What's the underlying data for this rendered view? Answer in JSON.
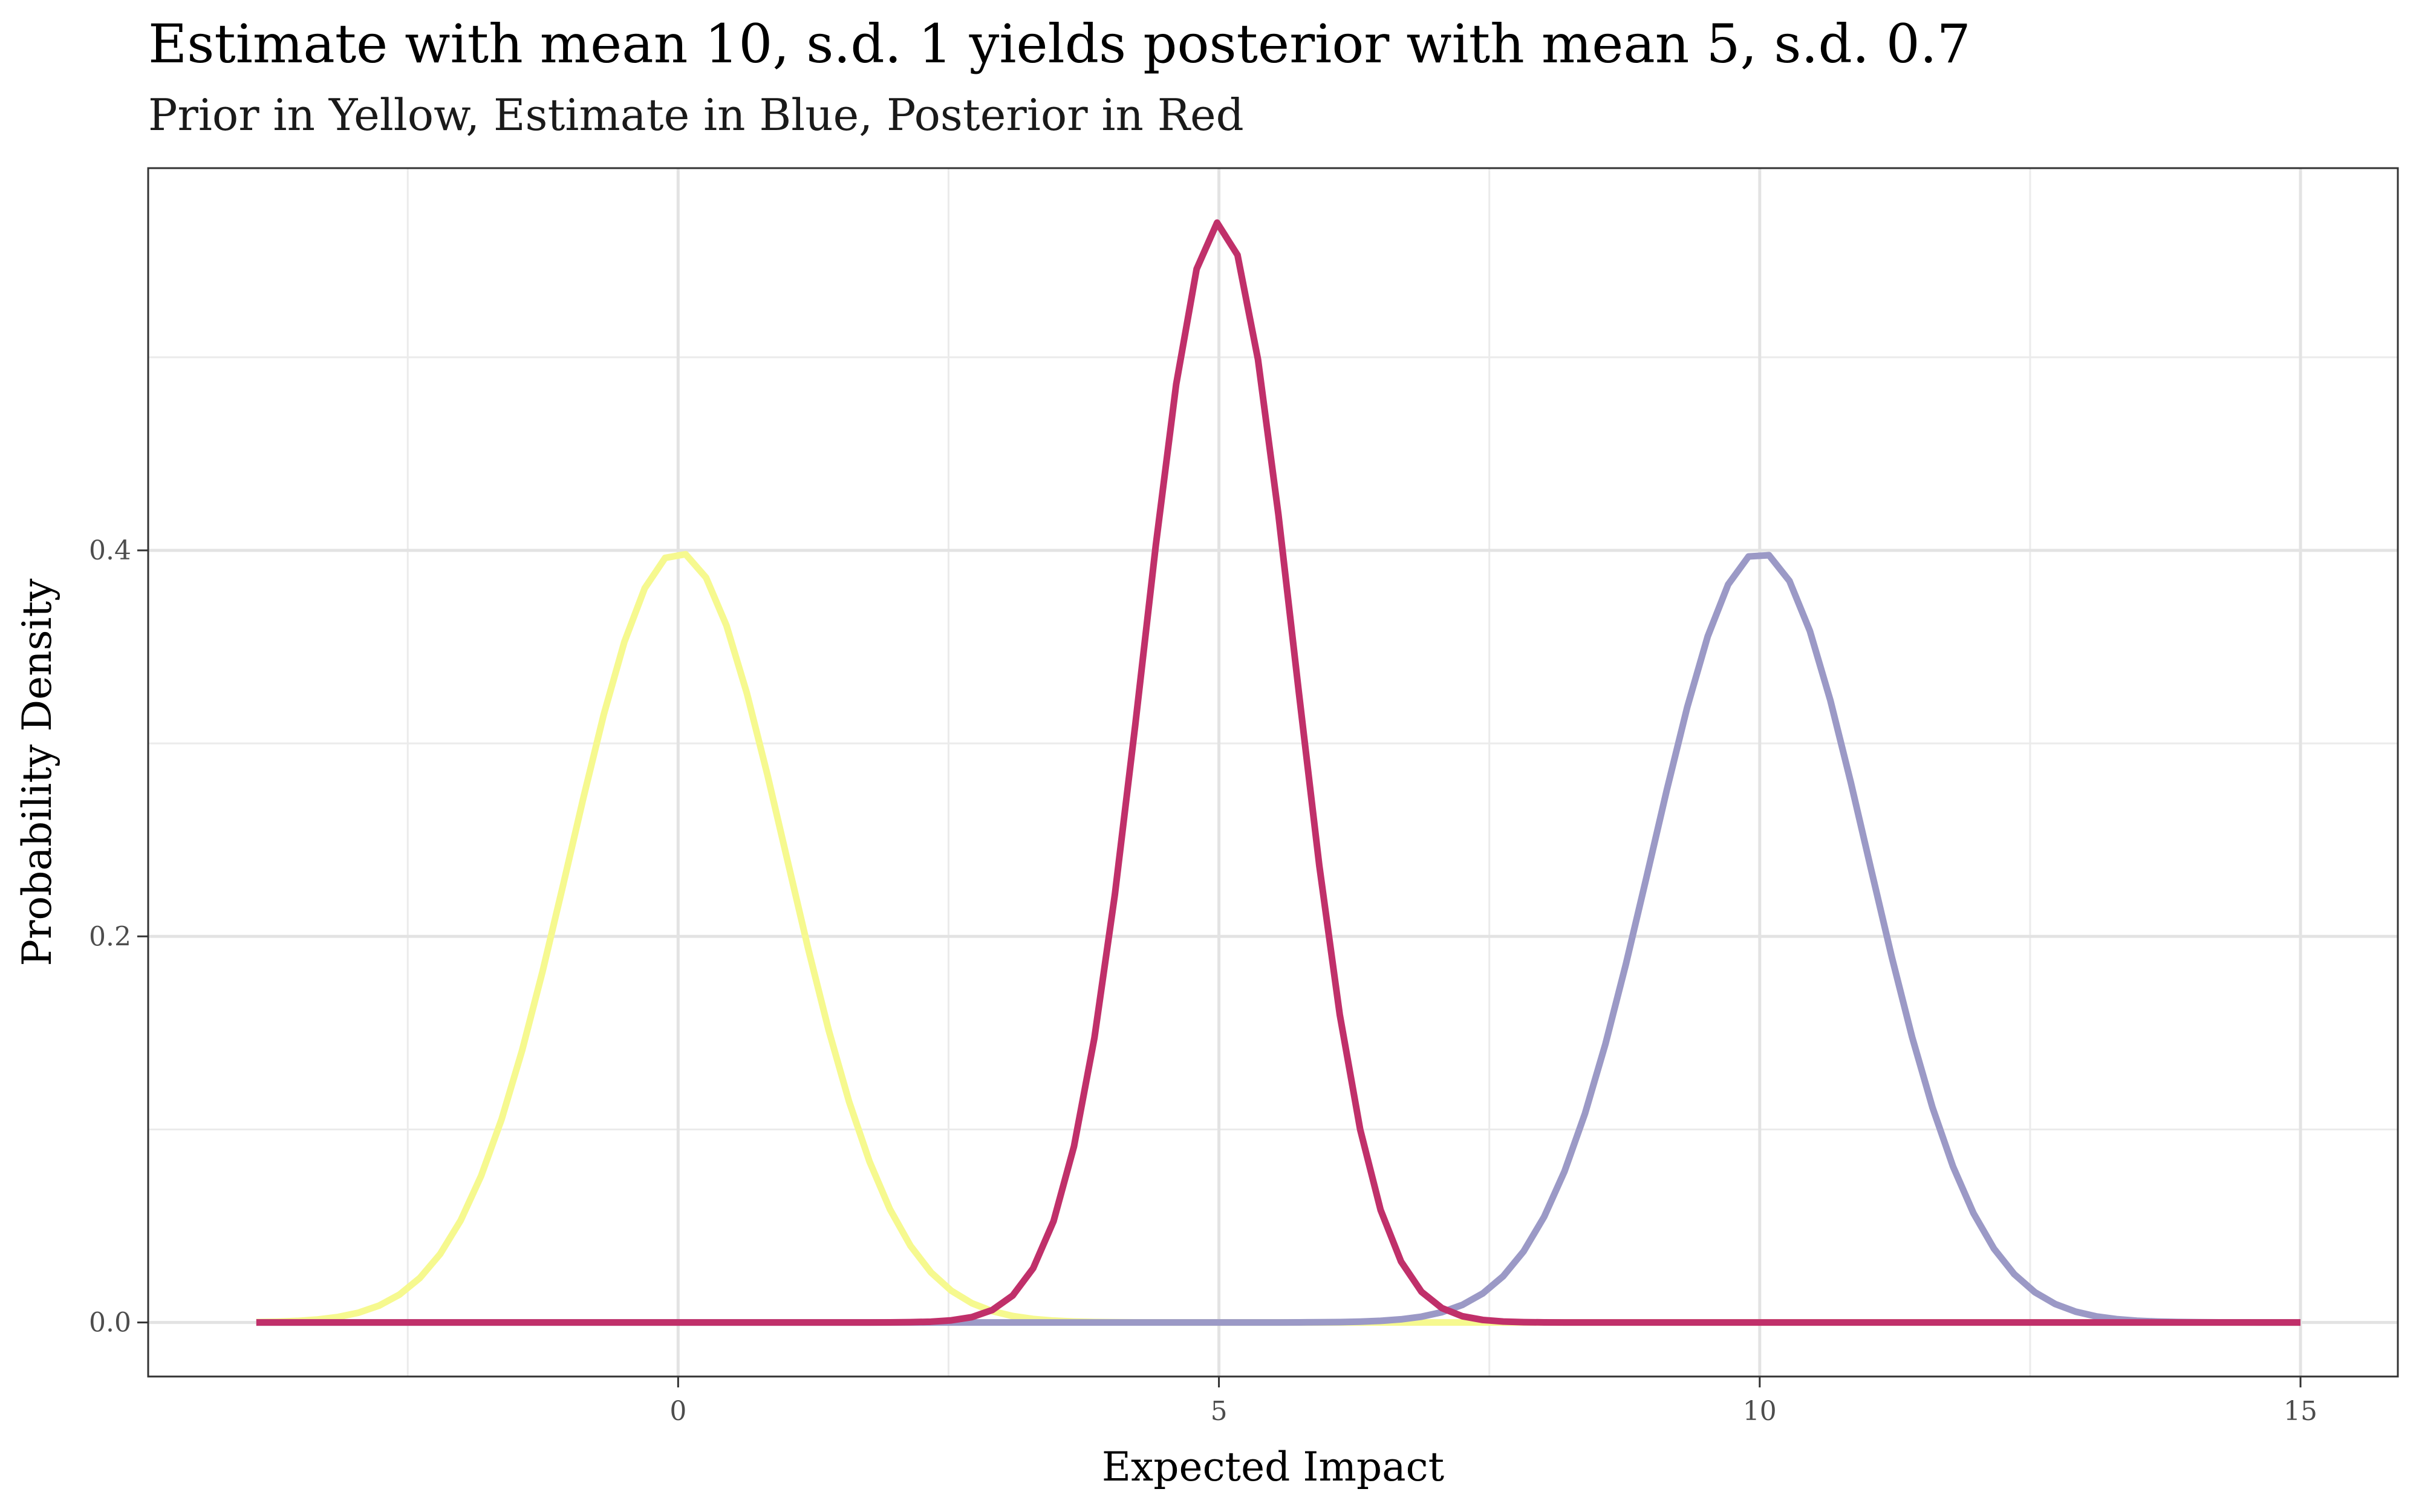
{
  "chart_data": {
    "type": "line",
    "title": "Estimate with mean 10, s.d. 1 yields posterior with mean 5, s.d. 0.7",
    "subtitle": "Prior in Yellow, Estimate in Blue, Posterior in Red",
    "xlabel": "Expected Impact",
    "ylabel": "Probability Density",
    "xlim": [
      -4.9,
      15.9
    ],
    "ylim": [
      -0.028,
      0.598
    ],
    "x_ticks": [
      0,
      5,
      10,
      15
    ],
    "x_tick_labels": [
      "0",
      "5",
      "10",
      "15"
    ],
    "y_ticks": [
      0.0,
      0.2,
      0.4
    ],
    "y_tick_labels": [
      "0.0",
      "0.2",
      "0.4"
    ],
    "x_minor_ticks": [
      -2.5,
      2.5,
      7.5,
      12.5
    ],
    "y_minor_ticks": [
      0.1,
      0.3,
      0.5
    ],
    "grid": true,
    "legend": "none",
    "x_range": [
      -3.9,
      15
    ],
    "series": [
      {
        "color": "#f6f98f",
        "curve": "normal density",
        "mean": 0,
        "sd": 1
      },
      {
        "color": "#9b99c6",
        "curve": "normal density",
        "mean": 10,
        "sd": 1
      },
      {
        "color": "#c0306a",
        "curve": "normal density",
        "mean": 5,
        "sd": 0.7
      }
    ]
  }
}
